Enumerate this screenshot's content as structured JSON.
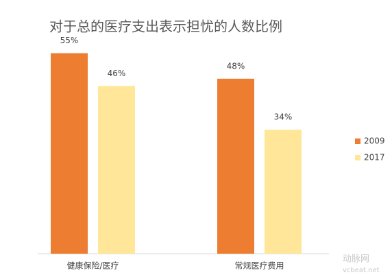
{
  "chart_data": {
    "type": "bar",
    "title": "对于总的医疗支出表示担忧的人数比例",
    "categories": [
      "健康保险/医疗",
      "常规医疗费用"
    ],
    "series": [
      {
        "name": "2009",
        "color": "#ED7D31",
        "values": [
          55,
          48
        ],
        "value_labels": [
          "55%",
          "48%"
        ]
      },
      {
        "name": "2017",
        "color": "#FFE699",
        "values": [
          46,
          34
        ],
        "value_labels": [
          "46%",
          "34%"
        ]
      }
    ],
    "ylim": [
      0,
      60
    ],
    "legend": "right"
  },
  "watermark": [
    "动脉网",
    "vcbeat.net"
  ]
}
